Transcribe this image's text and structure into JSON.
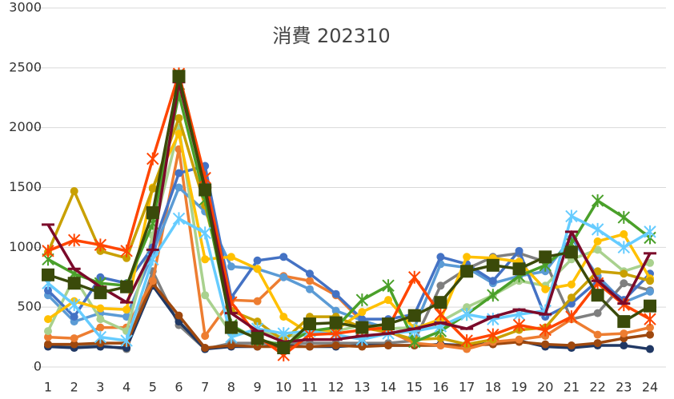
{
  "chart_data": {
    "type": "line",
    "title": "消費 202310",
    "categories": [
      "1",
      "2",
      "3",
      "4",
      "5",
      "6",
      "7",
      "8",
      "9",
      "10",
      "11",
      "12",
      "13",
      "14",
      "15",
      "16",
      "17",
      "18",
      "19",
      "20",
      "21",
      "22",
      "23",
      "24"
    ],
    "ylim": [
      0,
      3000
    ],
    "yticks": [
      0,
      500,
      1000,
      1500,
      2000,
      2500,
      3000
    ],
    "grid": true,
    "series": [
      {
        "color": "#7f7f7f",
        "marker": "circle",
        "values": [
          180,
          180,
          180,
          150,
          800,
          350,
          150,
          200,
          200,
          200,
          200,
          200,
          200,
          200,
          220,
          680,
          820,
          920,
          950,
          880,
          400,
          450,
          700,
          640
        ]
      },
      {
        "color": "#203864",
        "marker": "circle",
        "values": [
          170,
          160,
          170,
          160,
          680,
          380,
          150,
          170,
          170,
          180,
          170,
          170,
          180,
          180,
          180,
          190,
          180,
          200,
          220,
          170,
          160,
          180,
          180,
          150
        ]
      },
      {
        "color": "#9e480e",
        "marker": "circle",
        "values": [
          190,
          190,
          200,
          200,
          700,
          430,
          160,
          180,
          170,
          170,
          170,
          180,
          170,
          180,
          180,
          180,
          180,
          190,
          210,
          190,
          180,
          200,
          240,
          270
        ]
      },
      {
        "color": "#ed7d31",
        "marker": "circle",
        "values": [
          250,
          240,
          330,
          330,
          720,
          1820,
          260,
          560,
          550,
          760,
          720,
          600,
          380,
          300,
          200,
          180,
          150,
          210,
          230,
          260,
          400,
          270,
          280,
          330
        ]
      },
      {
        "color": "#5b9bd5",
        "marker": "circle",
        "values": [
          600,
          380,
          450,
          420,
          950,
          1500,
          1300,
          840,
          820,
          750,
          650,
          470,
          390,
          320,
          330,
          860,
          830,
          700,
          760,
          800,
          1080,
          760,
          540,
          630
        ]
      },
      {
        "color": "#a9d18e",
        "marker": "circle",
        "values": [
          300,
          750,
          400,
          300,
          1100,
          2000,
          600,
          280,
          300,
          250,
          280,
          300,
          350,
          320,
          330,
          380,
          500,
          600,
          720,
          680,
          900,
          980,
          800,
          870
        ]
      },
      {
        "color": "#4472c4",
        "marker": "circle",
        "values": [
          640,
          420,
          750,
          700,
          1000,
          1620,
          1680,
          580,
          890,
          920,
          780,
          610,
          400,
          400,
          440,
          920,
          860,
          720,
          970,
          420,
          530,
          720,
          560,
          780
        ]
      },
      {
        "color": "#ffc000",
        "marker": "circle",
        "values": [
          400,
          550,
          490,
          480,
          1500,
          1950,
          900,
          920,
          820,
          420,
          280,
          310,
          460,
          560,
          320,
          400,
          920,
          910,
          880,
          650,
          690,
          1050,
          1110,
          740
        ]
      },
      {
        "color": "#c9a000",
        "marker": "circle",
        "values": [
          960,
          1470,
          970,
          910,
          1490,
          2080,
          1350,
          470,
          380,
          220,
          420,
          420,
          330,
          290,
          230,
          240,
          190,
          230,
          310,
          330,
          580,
          800,
          780,
          720
        ]
      },
      {
        "color": "#4aa02a",
        "marker": "cross",
        "values": [
          900,
          780,
          700,
          680,
          1200,
          2280,
          1400,
          350,
          230,
          180,
          300,
          330,
          560,
          680,
          210,
          300,
          440,
          600,
          760,
          850,
          1030,
          1390,
          1250,
          1080
        ]
      },
      {
        "color": "#66ccff",
        "marker": "cross",
        "values": [
          700,
          520,
          250,
          220,
          900,
          1240,
          1120,
          250,
          320,
          280,
          300,
          270,
          230,
          280,
          300,
          340,
          440,
          400,
          440,
          470,
          1260,
          1150,
          1000,
          1130
        ]
      },
      {
        "color": "#ff4500",
        "marker": "cross",
        "values": [
          970,
          1060,
          1020,
          970,
          1740,
          2450,
          1580,
          540,
          260,
          100,
          270,
          280,
          310,
          330,
          750,
          440,
          220,
          270,
          350,
          310,
          420,
          700,
          520,
          400
        ]
      },
      {
        "color": "#7b0a2a",
        "marker": "dash",
        "values": [
          1190,
          820,
          670,
          540,
          980,
          2380,
          1500,
          450,
          300,
          210,
          230,
          230,
          260,
          280,
          320,
          370,
          320,
          420,
          480,
          440,
          1130,
          720,
          530,
          950
        ]
      },
      {
        "color": "#3a4a0a",
        "marker": "square",
        "values": [
          770,
          700,
          620,
          670,
          1290,
          2430,
          1480,
          330,
          240,
          160,
          360,
          370,
          330,
          360,
          430,
          540,
          800,
          850,
          820,
          920,
          960,
          600,
          380,
          510
        ]
      }
    ]
  }
}
